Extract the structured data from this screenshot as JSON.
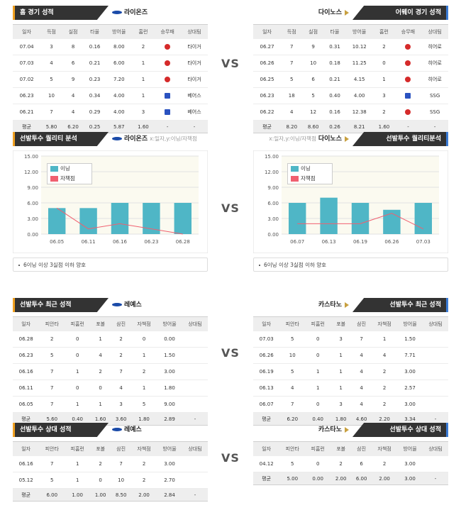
{
  "colors": {
    "bar": "#4fb6c6",
    "line": "#f06070",
    "header_dark": "#333333",
    "accent_home": "#f0a020",
    "accent_away": "#3a7bd5",
    "win": "#2a52c0",
    "loss": "#d52a2a"
  },
  "vs_label": "VS",
  "home": {
    "team": "라이온즈",
    "pitcher": "레예스",
    "recent_title": "홈 경기 성적",
    "quality_title": "선발투수 퀄리티 분석",
    "quality_note": "x:일자,y:이닝/자책점",
    "columns": [
      "일자",
      "득점",
      "실점",
      "타율",
      "방어율",
      "홈런",
      "승무패",
      "상대팀"
    ],
    "rows": [
      [
        "07.04",
        "3",
        "8",
        "0.16",
        "8.00",
        "2",
        "loss",
        "타이거"
      ],
      [
        "07.03",
        "4",
        "6",
        "0.21",
        "6.00",
        "1",
        "loss",
        "타이거"
      ],
      [
        "07.02",
        "5",
        "9",
        "0.23",
        "7.20",
        "1",
        "loss",
        "타이거"
      ],
      [
        "06.23",
        "10",
        "4",
        "0.34",
        "4.00",
        "1",
        "win",
        "베어스"
      ],
      [
        "06.21",
        "7",
        "4",
        "0.29",
        "4.00",
        "3",
        "win",
        "베어스"
      ]
    ],
    "avg": [
      "평균",
      "5.80",
      "6.20",
      "0.25",
      "5.87",
      "1.60",
      "-",
      "-"
    ]
  },
  "away": {
    "team": "다이노스",
    "pitcher": "카스타노",
    "recent_title": "어웨이 경기 성적",
    "quality_title": "선발투수 퀄리티분석",
    "quality_note": "x:일자,y:이닝/자책점",
    "columns": [
      "일자",
      "득점",
      "실점",
      "타율",
      "방어율",
      "홈런",
      "승무패",
      "상대팀"
    ],
    "rows": [
      [
        "06.27",
        "7",
        "9",
        "0.31",
        "10.12",
        "2",
        "loss",
        "히어로"
      ],
      [
        "06.26",
        "7",
        "10",
        "0.18",
        "11.25",
        "0",
        "loss",
        "히어로"
      ],
      [
        "06.25",
        "5",
        "6",
        "0.21",
        "4.15",
        "1",
        "loss",
        "히어로"
      ],
      [
        "06.23",
        "18",
        "5",
        "0.40",
        "4.00",
        "3",
        "win",
        "SSG"
      ],
      [
        "06.22",
        "4",
        "12",
        "0.16",
        "12.38",
        "2",
        "loss",
        "SSG"
      ]
    ],
    "avg": [
      "평균",
      "8.20",
      "8.60",
      "0.26",
      "8.21",
      "1.60",
      "-",
      "-"
    ]
  },
  "pitcher_recent": {
    "home_title": "선발투수 최근 성적",
    "away_title": "선발투수 최근 성적",
    "columns": [
      "일자",
      "피안타",
      "피홈런",
      "포볼",
      "삼진",
      "자책점",
      "방어율",
      "상대팀"
    ],
    "home_rows": [
      [
        "06.28",
        "2",
        "0",
        "1",
        "2",
        "0",
        "0.00",
        ""
      ],
      [
        "06.23",
        "5",
        "0",
        "4",
        "2",
        "1",
        "1.50",
        ""
      ],
      [
        "06.16",
        "7",
        "1",
        "2",
        "7",
        "2",
        "3.00",
        ""
      ],
      [
        "06.11",
        "7",
        "0",
        "0",
        "4",
        "1",
        "1.80",
        ""
      ],
      [
        "06.05",
        "7",
        "1",
        "1",
        "3",
        "5",
        "9.00",
        ""
      ]
    ],
    "home_avg": [
      "평균",
      "5.60",
      "0.40",
      "1.60",
      "3.60",
      "1.80",
      "2.89",
      "-"
    ],
    "away_rows": [
      [
        "07.03",
        "5",
        "0",
        "3",
        "7",
        "1",
        "1.50",
        ""
      ],
      [
        "06.26",
        "10",
        "0",
        "1",
        "4",
        "4",
        "7.71",
        ""
      ],
      [
        "06.19",
        "5",
        "1",
        "1",
        "4",
        "2",
        "3.00",
        ""
      ],
      [
        "06.13",
        "4",
        "1",
        "1",
        "4",
        "2",
        "2.57",
        ""
      ],
      [
        "06.07",
        "7",
        "0",
        "3",
        "4",
        "2",
        "3.00",
        ""
      ]
    ],
    "away_avg": [
      "평균",
      "6.20",
      "0.40",
      "1.80",
      "4.60",
      "2.20",
      "3.34",
      "-"
    ]
  },
  "pitcher_vs": {
    "home_title": "선발투수 상대 성적",
    "away_title": "선발투수 상대 성적",
    "columns": [
      "일자",
      "피안타",
      "피홈런",
      "포볼",
      "삼진",
      "자책점",
      "방어율",
      "상대팀"
    ],
    "home_rows": [
      [
        "06.16",
        "7",
        "1",
        "2",
        "7",
        "2",
        "3.00",
        ""
      ],
      [
        "05.12",
        "5",
        "1",
        "0",
        "10",
        "2",
        "2.70",
        ""
      ]
    ],
    "home_avg": [
      "평균",
      "6.00",
      "1.00",
      "1.00",
      "8.50",
      "2.00",
      "2.84",
      "-"
    ],
    "away_rows": [
      [
        "04.12",
        "5",
        "0",
        "2",
        "6",
        "2",
        "3.00",
        ""
      ]
    ],
    "away_avg": [
      "평균",
      "5.00",
      "0.00",
      "2.00",
      "6.00",
      "2.00",
      "3.00",
      "-"
    ]
  },
  "chart_data": [
    {
      "type": "bar",
      "categories": [
        "06.05",
        "06.11",
        "06.16",
        "06.23",
        "06.28"
      ],
      "series": [
        {
          "name": "이닝",
          "values": [
            5,
            5,
            6,
            6,
            6
          ]
        },
        {
          "name": "자책점",
          "values": [
            5,
            1,
            2,
            1,
            0
          ],
          "type": "line"
        }
      ],
      "ylim": [
        0,
        15
      ],
      "yticks": [
        "0.00",
        "3.00",
        "6.00",
        "9.00",
        "12.00",
        "15.00"
      ],
      "legend": "top-left",
      "grid": true,
      "footnote": "6이닝 이상 3실점 이하 양호"
    },
    {
      "type": "bar",
      "categories": [
        "06.07",
        "06.13",
        "06.19",
        "06.26",
        "07.03"
      ],
      "series": [
        {
          "name": "이닝",
          "values": [
            6,
            7,
            6,
            4.67,
            6
          ]
        },
        {
          "name": "자책점",
          "values": [
            2,
            2,
            2,
            4,
            1
          ],
          "type": "line"
        }
      ],
      "ylim": [
        0,
        15
      ],
      "yticks": [
        "0.00",
        "3.00",
        "6.00",
        "9.00",
        "12.00",
        "15.00"
      ],
      "legend": "top-left",
      "grid": true,
      "footnote": "6이닝 이상 3실점 이하 양호"
    }
  ]
}
